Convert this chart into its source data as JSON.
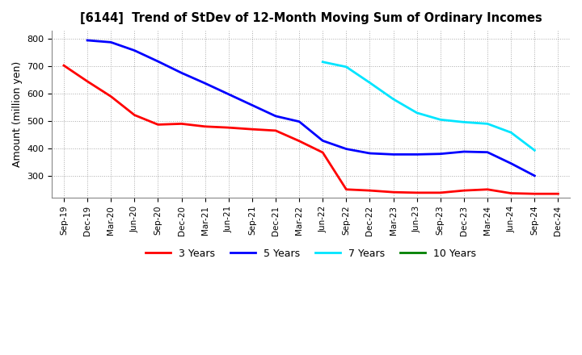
{
  "title": "[6144]  Trend of StDev of 12-Month Moving Sum of Ordinary Incomes",
  "ylabel": "Amount (million yen)",
  "ylim": [
    220,
    830
  ],
  "yticks": [
    300,
    400,
    500,
    600,
    700,
    800
  ],
  "background_color": "#ffffff",
  "grid_color": "#aaaaaa",
  "x_labels": [
    "Sep-19",
    "Dec-19",
    "Mar-20",
    "Jun-20",
    "Sep-20",
    "Dec-20",
    "Mar-21",
    "Jun-21",
    "Sep-21",
    "Dec-21",
    "Mar-22",
    "Jun-22",
    "Sep-22",
    "Dec-22",
    "Mar-23",
    "Jun-23",
    "Sep-23",
    "Dec-23",
    "Mar-24",
    "Jun-24",
    "Sep-24",
    "Dec-24"
  ],
  "series": [
    {
      "name": "3 Years",
      "color": "#ff0000",
      "xs": [
        0,
        1,
        2,
        3,
        4,
        5,
        6,
        7,
        8,
        9,
        10,
        11,
        12,
        13,
        14,
        15,
        16,
        17,
        18,
        19,
        20,
        21
      ],
      "ys": [
        703,
        645,
        590,
        522,
        487,
        490,
        480,
        476,
        470,
        465,
        427,
        385,
        250,
        246,
        240,
        238,
        238,
        246,
        250,
        236,
        234,
        234
      ]
    },
    {
      "name": "5 Years",
      "color": "#0000ff",
      "xs": [
        1,
        2,
        3,
        4,
        5,
        6,
        7,
        8,
        9,
        10,
        11,
        12,
        13,
        14,
        15,
        16,
        17,
        18,
        19,
        20
      ],
      "ys": [
        795,
        788,
        758,
        718,
        676,
        638,
        598,
        558,
        518,
        498,
        428,
        398,
        382,
        378,
        378,
        380,
        388,
        386,
        345,
        300
      ]
    },
    {
      "name": "7 Years",
      "color": "#00e5ff",
      "xs": [
        11,
        12,
        13,
        14,
        15,
        16,
        17,
        18,
        19,
        20
      ],
      "ys": [
        716,
        698,
        640,
        580,
        530,
        505,
        496,
        490,
        458,
        393
      ]
    },
    {
      "name": "10 Years",
      "color": "#008000",
      "xs": [],
      "ys": []
    }
  ],
  "legend_labels": [
    "3 Years",
    "5 Years",
    "7 Years",
    "10 Years"
  ],
  "legend_colors": [
    "#ff0000",
    "#0000ff",
    "#00e5ff",
    "#008000"
  ]
}
